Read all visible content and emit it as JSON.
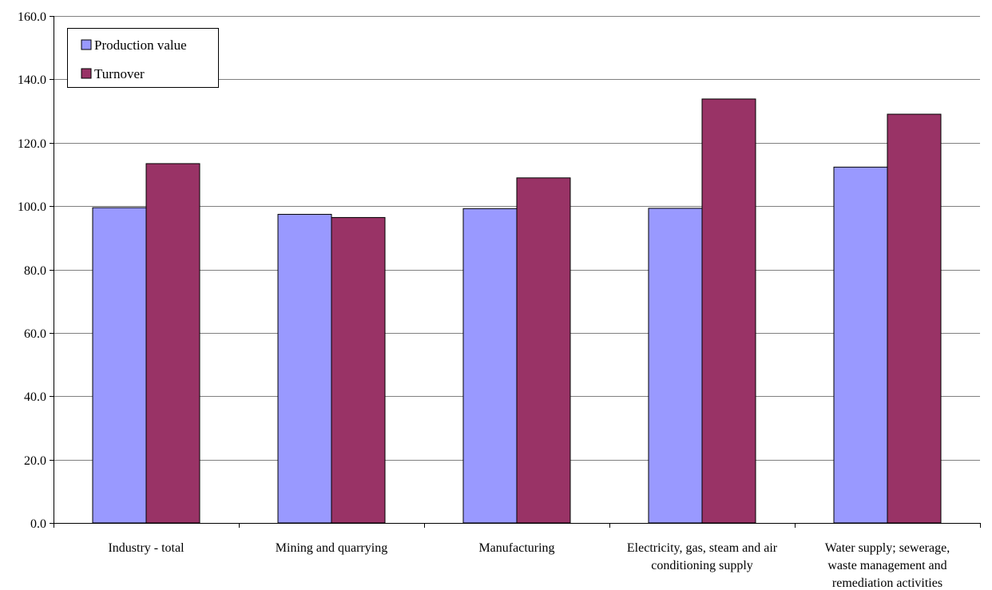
{
  "chart_data": {
    "type": "bar",
    "categories": [
      [
        "Industry - total"
      ],
      [
        "Mining and quarrying"
      ],
      [
        "Manufacturing"
      ],
      [
        "Electricity, gas, steam and air",
        "conditioning supply"
      ],
      [
        "Water supply; sewerage,",
        "waste management and",
        "remediation activities"
      ]
    ],
    "series": [
      {
        "name": "Production value",
        "color": "#9999ff",
        "values": [
          99.5,
          97.4,
          99.2,
          99.3,
          112.3
        ]
      },
      {
        "name": "Turnover",
        "color": "#993366",
        "values": [
          113.4,
          96.4,
          108.9,
          133.8,
          129.0
        ]
      }
    ],
    "ylim": [
      0,
      160
    ],
    "yticks": [
      0,
      20,
      40,
      60,
      80,
      100,
      120,
      140,
      160
    ],
    "ytick_labels": [
      "0.0",
      "20.0",
      "40.0",
      "60.0",
      "80.0",
      "100.0",
      "120.0",
      "140.0",
      "160.0"
    ],
    "grid": true,
    "legend_position": "top-left",
    "title": "",
    "xlabel": "",
    "ylabel": ""
  }
}
